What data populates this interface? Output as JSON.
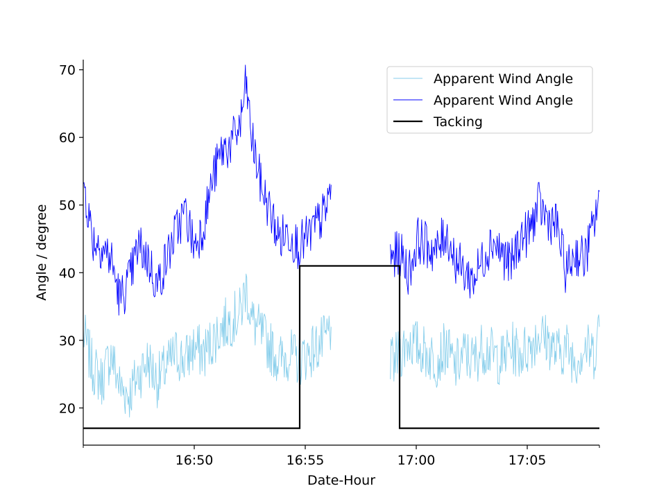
{
  "chart_data": {
    "type": "line",
    "xlabel": "Date-Hour",
    "ylabel": "Angle / degree",
    "x_unit": "time (HH:MM)",
    "xlim": [
      "16:45:00",
      "17:08:15"
    ],
    "ylim": [
      14.5,
      71.5
    ],
    "x_ticks": [
      "16:50",
      "16:55",
      "17:00",
      "17:05"
    ],
    "y_ticks": [
      20,
      30,
      40,
      50,
      60,
      70
    ],
    "grid": false,
    "legend_position": "upper right",
    "series": [
      {
        "name": "Apparent Wind Angle",
        "color": "#87ceeb",
        "segments": [
          [
            [
              "16:45:00",
              31
            ],
            [
              "16:45:25",
              26
            ],
            [
              "16:45:50",
              24
            ],
            [
              "16:46:15",
              28
            ],
            [
              "16:46:40",
              23
            ],
            [
              "16:47:05",
              22
            ],
            [
              "16:47:30",
              25
            ],
            [
              "16:47:55",
              27
            ],
            [
              "16:48:20",
              24
            ],
            [
              "16:48:45",
              26
            ],
            [
              "16:49:10",
              28
            ],
            [
              "16:49:35",
              27
            ],
            [
              "16:50:00",
              29
            ],
            [
              "16:50:25",
              28
            ],
            [
              "16:50:50",
              30
            ],
            [
              "16:51:15",
              32
            ],
            [
              "16:51:40",
              33
            ],
            [
              "16:52:05",
              34
            ],
            [
              "16:52:20",
              38
            ],
            [
              "16:52:35",
              33
            ],
            [
              "16:53:00",
              31
            ],
            [
              "16:53:25",
              29
            ],
            [
              "16:53:50",
              27
            ],
            [
              "16:54:15",
              28
            ],
            [
              "16:54:40",
              27
            ],
            [
              "16:55:05",
              28
            ],
            [
              "16:55:30",
              29
            ],
            [
              "16:55:55",
              30
            ],
            [
              "16:56:10",
              32
            ]
          ],
          [
            [
              "16:58:50",
              26
            ],
            [
              "16:59:15",
              28
            ],
            [
              "16:59:40",
              30
            ],
            [
              "17:00:05",
              29
            ],
            [
              "17:00:30",
              28
            ],
            [
              "17:00:55",
              27
            ],
            [
              "17:01:20",
              29
            ],
            [
              "17:01:45",
              26
            ],
            [
              "17:02:10",
              28
            ],
            [
              "17:02:35",
              27
            ],
            [
              "17:03:00",
              29
            ],
            [
              "17:03:25",
              28
            ],
            [
              "17:03:50",
              27
            ],
            [
              "17:04:15",
              29
            ],
            [
              "17:04:40",
              28
            ],
            [
              "17:05:05",
              29
            ],
            [
              "17:05:30",
              31
            ],
            [
              "17:05:55",
              30
            ],
            [
              "17:06:20",
              28
            ],
            [
              "17:06:45",
              29
            ],
            [
              "17:07:10",
              27
            ],
            [
              "17:07:35",
              29
            ],
            [
              "17:08:00",
              28
            ],
            [
              "17:08:15",
              32
            ]
          ]
        ]
      },
      {
        "name": "Apparent Wind Angle",
        "color": "#0000ff",
        "segments": [
          [
            [
              "16:45:00",
              54
            ],
            [
              "16:45:25",
              45
            ],
            [
              "16:45:50",
              44
            ],
            [
              "16:46:15",
              42
            ],
            [
              "16:46:40",
              36
            ],
            [
              "16:47:05",
              39
            ],
            [
              "16:47:30",
              44
            ],
            [
              "16:47:55",
              42
            ],
            [
              "16:48:20",
              38
            ],
            [
              "16:48:45",
              42
            ],
            [
              "16:49:10",
              46
            ],
            [
              "16:49:35",
              49
            ],
            [
              "16:50:00",
              44
            ],
            [
              "16:50:25",
              47
            ],
            [
              "16:50:50",
              54
            ],
            [
              "16:51:15",
              58
            ],
            [
              "16:51:40",
              59
            ],
            [
              "16:52:05",
              62
            ],
            [
              "16:52:20",
              68
            ],
            [
              "16:52:35",
              60
            ],
            [
              "16:53:00",
              53
            ],
            [
              "16:53:25",
              49
            ],
            [
              "16:53:50",
              45
            ],
            [
              "16:54:15",
              46
            ],
            [
              "16:54:40",
              44
            ],
            [
              "16:55:05",
              45
            ],
            [
              "16:55:30",
              47
            ],
            [
              "16:55:55",
              49
            ],
            [
              "16:56:10",
              53
            ]
          ],
          [
            [
              "16:58:50",
              42
            ],
            [
              "16:59:15",
              43
            ],
            [
              "16:59:40",
              40
            ],
            [
              "17:00:05",
              45
            ],
            [
              "17:00:30",
              44
            ],
            [
              "17:00:55",
              43
            ],
            [
              "17:01:20",
              46
            ],
            [
              "17:01:45",
              42
            ],
            [
              "17:02:10",
              40
            ],
            [
              "17:02:35",
              39
            ],
            [
              "17:03:00",
              42
            ],
            [
              "17:03:25",
              45
            ],
            [
              "17:03:50",
              43
            ],
            [
              "17:04:15",
              41
            ],
            [
              "17:04:40",
              45
            ],
            [
              "17:05:05",
              46
            ],
            [
              "17:05:30",
              50
            ],
            [
              "17:05:55",
              48
            ],
            [
              "17:06:20",
              47
            ],
            [
              "17:06:45",
              40
            ],
            [
              "17:07:10",
              43
            ],
            [
              "17:07:35",
              42
            ],
            [
              "17:08:00",
              47
            ],
            [
              "17:08:15",
              52
            ]
          ]
        ]
      },
      {
        "name": "Tacking",
        "color": "#000000",
        "step": true,
        "points": [
          [
            "16:45:00",
            17
          ],
          [
            "16:54:45",
            17
          ],
          [
            "16:54:45",
            41
          ],
          [
            "16:59:15",
            41
          ],
          [
            "16:59:15",
            17
          ],
          [
            "17:08:15",
            17
          ]
        ]
      }
    ]
  }
}
